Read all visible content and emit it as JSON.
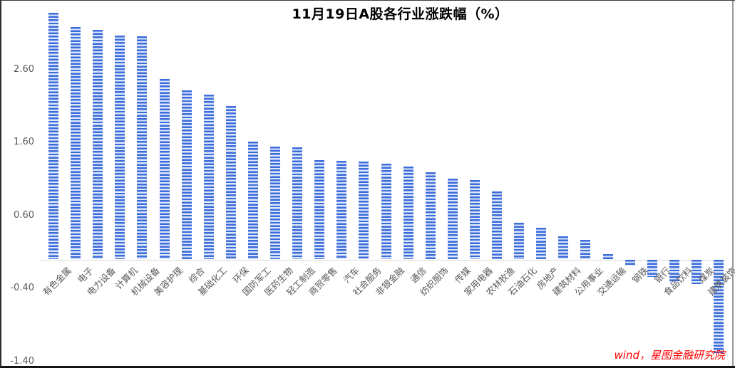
{
  "title": "11月19日A股各行业涨跌幅（%）",
  "source_note": "wind，星图金融研究院",
  "colors": {
    "bar_blue": "#3c6bdb",
    "bar_stripe_light": "#dce7f8",
    "axis_line": "#d9d9d9",
    "label_gray": "#595959",
    "source_red": "#ff0000"
  },
  "chart_data": {
    "type": "bar",
    "title": "11月19日A股各行业涨跌幅（%）",
    "xlabel": "",
    "ylabel": "",
    "categories": [
      "有色金属",
      "电子",
      "电力设备",
      "计算机",
      "机械设备",
      "美容护理",
      "综合",
      "基础化工",
      "环保",
      "国防军工",
      "医药生物",
      "轻工制造",
      "商贸零售",
      "汽车",
      "社会服务",
      "非银金融",
      "通信",
      "纺织服饰",
      "传媒",
      "家用电器",
      "农林牧渔",
      "石油石化",
      "房地产",
      "建筑材料",
      "公用事业",
      "交通运输",
      "钢铁",
      "银行",
      "食品饮料",
      "煤炭",
      "建筑装饰"
    ],
    "values": [
      3.38,
      3.18,
      3.14,
      3.06,
      3.05,
      2.47,
      2.31,
      2.25,
      2.1,
      1.61,
      1.54,
      1.53,
      1.36,
      1.35,
      1.34,
      1.31,
      1.27,
      1.19,
      1.1,
      1.08,
      0.93,
      0.5,
      0.43,
      0.31,
      0.26,
      0.07,
      -0.08,
      -0.23,
      -0.31,
      -0.33,
      -1.28
    ],
    "y_tick_labels": [
      "2.60",
      "1.60",
      "0.60",
      "-0.40",
      "-1.40"
    ],
    "y_tick_values": [
      2.6,
      1.6,
      0.6,
      -0.4,
      -1.4
    ],
    "ylim": [
      -1.55,
      3.45
    ],
    "grid": false,
    "legend": "none",
    "bar_pattern": "horizontal-dashes",
    "category_label_rotation_deg": 45
  }
}
